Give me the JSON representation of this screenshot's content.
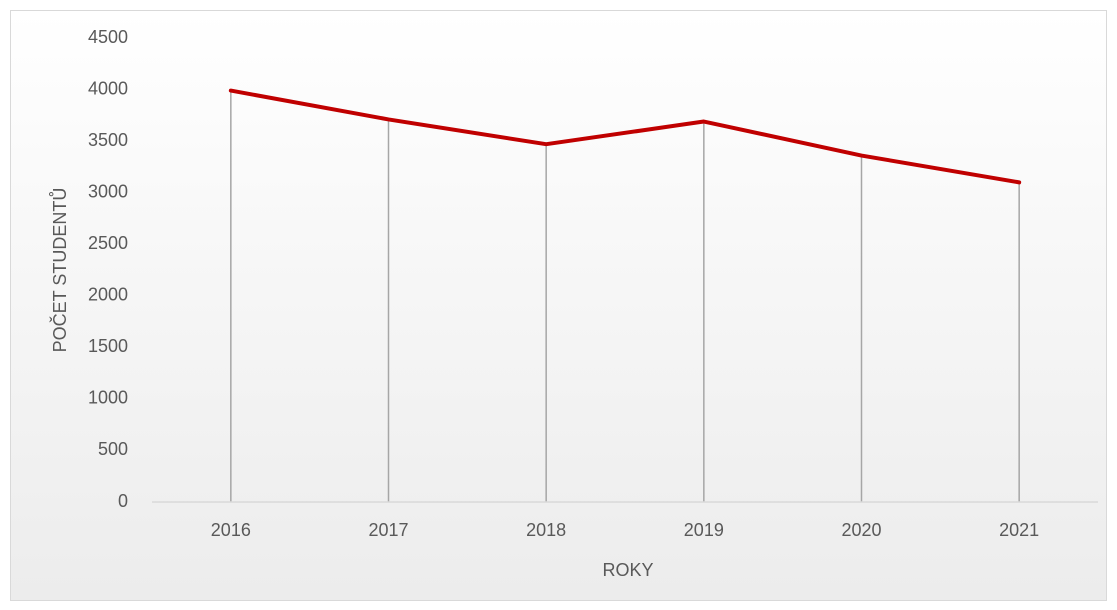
{
  "chart_data": {
    "type": "line",
    "x_label": "ROKY",
    "y_label": "POČET STUDENTŮ",
    "categories": [
      "2016",
      "2017",
      "2018",
      "2019",
      "2020",
      "2021"
    ],
    "values": [
      3990,
      3710,
      3470,
      3690,
      3360,
      3100
    ],
    "color": "#c00000",
    "drop_lines": true,
    "ylim": [
      0,
      4500
    ],
    "yticks": [
      0,
      500,
      1000,
      1500,
      2000,
      2500,
      3000,
      3500,
      4000,
      4500
    ],
    "grid": false
  }
}
